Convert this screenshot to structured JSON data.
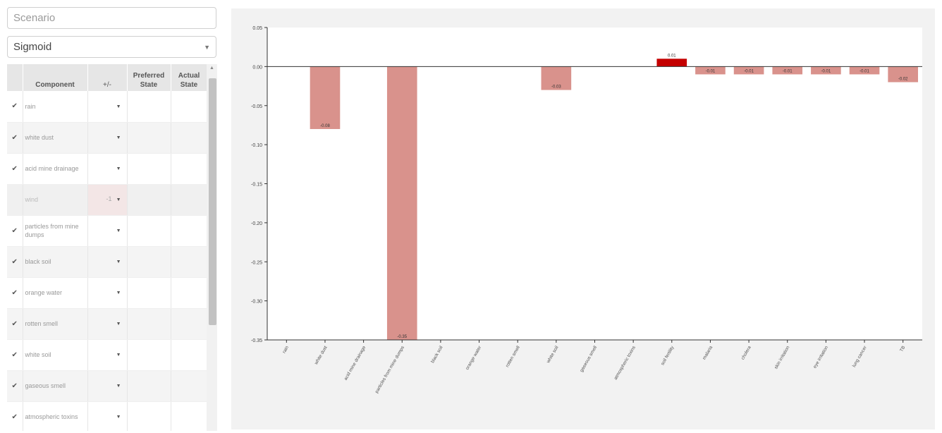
{
  "scenario": {
    "placeholder": "Scenario"
  },
  "function_select": {
    "value": "Sigmoid"
  },
  "table": {
    "headers": {
      "component": "Component",
      "sign": "+/-",
      "preferred": "Preferred State",
      "actual": "Actual State"
    },
    "rows": [
      {
        "label": "rain",
        "checked": true,
        "sign": ""
      },
      {
        "label": "white dust",
        "checked": true,
        "sign": ""
      },
      {
        "label": "acid mine drainage",
        "checked": true,
        "sign": ""
      },
      {
        "label": "wind",
        "checked": false,
        "sign": "-1"
      },
      {
        "label": "particles from mine dumps",
        "checked": true,
        "sign": ""
      },
      {
        "label": "black soil",
        "checked": true,
        "sign": ""
      },
      {
        "label": "orange water",
        "checked": true,
        "sign": ""
      },
      {
        "label": "rotten smell",
        "checked": true,
        "sign": ""
      },
      {
        "label": "white soil",
        "checked": true,
        "sign": ""
      },
      {
        "label": "gaseous smell",
        "checked": true,
        "sign": ""
      },
      {
        "label": "atmospheric toxins",
        "checked": true,
        "sign": ""
      }
    ]
  },
  "colors": {
    "bar": "#d9928c",
    "bar_highlight": "#c40000"
  },
  "chart_data": {
    "type": "bar",
    "categories": [
      "rain",
      "white dust",
      "acid mine drainage",
      "particles from mine dumps",
      "black soil",
      "orange water",
      "rotten smell",
      "white soil",
      "gaseous smell",
      "atmospheric toxins",
      "soil fertility",
      "malaria",
      "cholera",
      "skin irritation",
      "eye irritation",
      "lung cancer",
      "TB"
    ],
    "values": [
      0,
      -0.08,
      0,
      -0.35,
      0,
      0,
      0,
      -0.03,
      0,
      0,
      0.01,
      -0.01,
      -0.01,
      -0.01,
      -0.01,
      -0.01,
      -0.02
    ],
    "value_labels": [
      "",
      "-0.08",
      "",
      "-0.35",
      "",
      "",
      "",
      "-0.03",
      "",
      "",
      "0.01",
      "-0.01",
      "-0.01",
      "-0.01",
      "-0.01",
      "-0.01",
      "-0.02"
    ],
    "highlight_index": 10,
    "ylim": [
      -0.35,
      0.05
    ],
    "yticks": [
      0.05,
      0,
      -0.05,
      -0.1,
      -0.15,
      -0.2,
      -0.25,
      -0.3,
      -0.35
    ],
    "ytick_labels": [
      "0.05",
      "0.00",
      "-0.05",
      "-0.10",
      "-0.15",
      "-0.20",
      "-0.25",
      "-0.30",
      "-0.35"
    ],
    "title": "",
    "xlabel": "",
    "ylabel": "",
    "grid": false,
    "legend": "none"
  }
}
